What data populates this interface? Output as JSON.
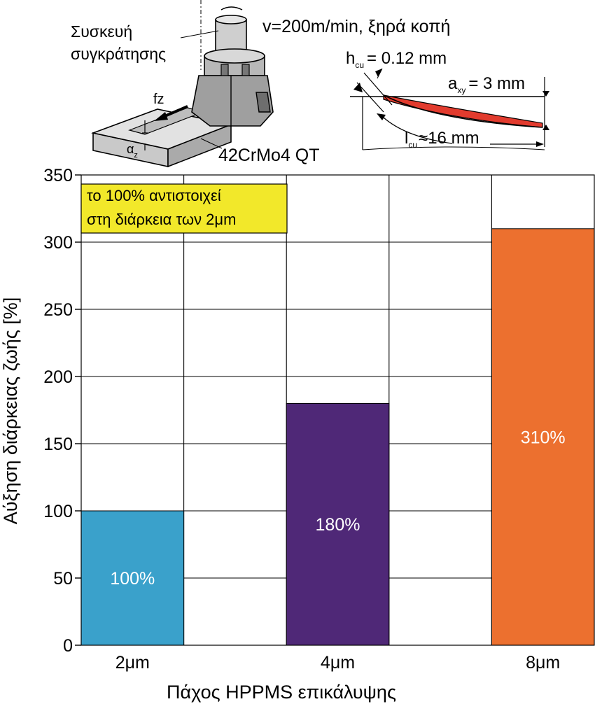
{
  "header": {
    "holder_label_line1": "Συσκευή",
    "holder_label_line2": "συγκράτησης",
    "cutting_conditions": "v=200m/min, ξηρά κοπή",
    "feed_label": "fz",
    "depth_symbol": "α",
    "depth_sub": "z",
    "workpiece_material": "42CrMo4 QT",
    "hcu_symbol": "h",
    "hcu_sub": "cu",
    "hcu_value": "= 0.12 mm",
    "axy_symbol": "a",
    "axy_sub": "xy",
    "axy_value": "= 3 mm",
    "lcu_symbol": "l",
    "lcu_sub": "cu",
    "lcu_value": "≈16 mm"
  },
  "note": {
    "line1": "το 100% αντιστοιχεί",
    "line2": "στη διάρκεια των 2μm",
    "bg_color": "#f2e82a"
  },
  "chart_data": {
    "type": "bar",
    "categories": [
      "2μm",
      "4μm",
      "8μm"
    ],
    "values": [
      100,
      180,
      310
    ],
    "data_labels": [
      "100%",
      "180%",
      "310%"
    ],
    "colors": [
      "#3aa1cb",
      "#4f2877",
      "#ec702f"
    ],
    "title": "",
    "xlabel": "Πάχος HPPMS επικάλυψης",
    "ylabel": "Αύξηση διάρκειας ζωής [%]",
    "ylim": [
      0,
      350
    ],
    "yticks": [
      "0",
      "50",
      "100",
      "150",
      "200",
      "250",
      "300",
      "350"
    ],
    "grid": true
  }
}
